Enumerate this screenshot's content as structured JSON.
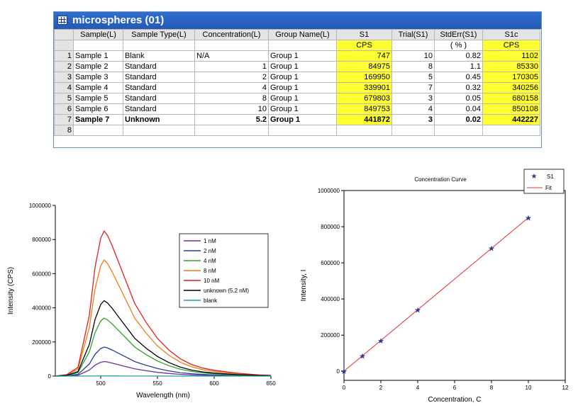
{
  "worksheet": {
    "title": "microspheres (01)",
    "headers": [
      "Sample(L)",
      "Sample Type(L)",
      "Concentration(L)",
      "Group Name(L)",
      "S1",
      "Trial(S1)",
      "StdErr(S1)",
      "S1c"
    ],
    "units": [
      "",
      "",
      "",
      "",
      "CPS",
      "",
      "( % )",
      "CPS"
    ],
    "rows": [
      {
        "n": "1",
        "sample": "Sample 1",
        "type": "Blank",
        "conc": "N/A",
        "group": "Group 1",
        "s1": "747",
        "trial": "10",
        "stderr": "0.82",
        "s1c": "1102"
      },
      {
        "n": "2",
        "sample": "Sample 2",
        "type": "Standard",
        "conc": "1",
        "group": "Group 1",
        "s1": "84975",
        "trial": "8",
        "stderr": "1.1",
        "s1c": "85330"
      },
      {
        "n": "3",
        "sample": "Sample 3",
        "type": "Standard",
        "conc": "2",
        "group": "Group 1",
        "s1": "169950",
        "trial": "5",
        "stderr": "0.45",
        "s1c": "170305"
      },
      {
        "n": "4",
        "sample": "Sample 4",
        "type": "Standard",
        "conc": "4",
        "group": "Group 1",
        "s1": "339901",
        "trial": "7",
        "stderr": "0.32",
        "s1c": "340256"
      },
      {
        "n": "5",
        "sample": "Sample 5",
        "type": "Standard",
        "conc": "8",
        "group": "Group 1",
        "s1": "679803",
        "trial": "3",
        "stderr": "0.05",
        "s1c": "680158"
      },
      {
        "n": "6",
        "sample": "Sample 6",
        "type": "Standard",
        "conc": "10",
        "group": "Group 1",
        "s1": "849753",
        "trial": "4",
        "stderr": "0.04",
        "s1c": "850108"
      },
      {
        "n": "7",
        "sample": "Sample 7",
        "type": "Unknown",
        "conc": "5.2",
        "group": "Group 1",
        "s1": "441872",
        "trial": "3",
        "stderr": "0.02",
        "s1c": "442227"
      },
      {
        "n": "8",
        "sample": "",
        "type": "",
        "conc": "",
        "group": "",
        "s1": "",
        "trial": "",
        "stderr": "",
        "s1c": ""
      }
    ]
  },
  "colors": {
    "title_bar": "#2559b4",
    "highlight": "#ffff33",
    "fit_line": "#e03030",
    "points": "#2a3b9c"
  },
  "chart_data": [
    {
      "type": "line",
      "title": "",
      "xlabel": "Wavelength (nm)",
      "ylabel": "Intensity (CPS)",
      "xlim": [
        460,
        650
      ],
      "ylim": [
        0,
        1000000
      ],
      "xticks": [
        "500",
        "550",
        "600",
        "650"
      ],
      "yticks": [
        "0",
        "200000",
        "400000",
        "600000",
        "800000",
        "1000000"
      ],
      "legend_position": "right",
      "series": [
        {
          "name": "1 nM",
          "color": "#7030a0",
          "peak": 85000
        },
        {
          "name": "2 nM",
          "color": "#2a3b9c",
          "peak": 170000
        },
        {
          "name": "4 nM",
          "color": "#2ca02c",
          "peak": 340000
        },
        {
          "name": "8 nM",
          "color": "#f07f10",
          "peak": 680000
        },
        {
          "name": "10 nM",
          "color": "#e02020",
          "peak": 850000
        },
        {
          "name": "unknown (5.2 nM)",
          "color": "#000000",
          "peak": 442000
        },
        {
          "name": "blank",
          "color": "#20a0a0",
          "peak": 800
        }
      ],
      "shape": {
        "x": [
          460,
          470,
          480,
          490,
          495,
          500,
          503,
          506,
          510,
          520,
          530,
          540,
          550,
          560,
          570,
          580,
          590,
          600,
          620,
          640,
          650
        ],
        "rel": [
          0.0,
          0.01,
          0.06,
          0.42,
          0.75,
          0.95,
          1.0,
          0.97,
          0.9,
          0.7,
          0.5,
          0.37,
          0.26,
          0.18,
          0.12,
          0.08,
          0.055,
          0.04,
          0.02,
          0.008,
          0.005
        ]
      }
    },
    {
      "type": "scatter",
      "title": "Concentration Curve",
      "xlabel": "Concentration, C",
      "ylabel": "Intensity, I",
      "xlim": [
        0,
        12
      ],
      "ylim": [
        -50000,
        1000000
      ],
      "xticks": [
        "0",
        "2",
        "4",
        "6",
        "8",
        "10",
        "12"
      ],
      "yticks": [
        "0",
        "200000",
        "400000",
        "600000",
        "800000",
        "1000000"
      ],
      "legend_position": "top-right",
      "series": [
        {
          "name": "S1",
          "marker": "star",
          "x": [
            0,
            1,
            2,
            4,
            8,
            10
          ],
          "y": [
            747,
            84975,
            169950,
            339901,
            679803,
            849753
          ]
        },
        {
          "name": "Fit",
          "line": true,
          "x": [
            0,
            10
          ],
          "y": [
            747,
            849753
          ]
        }
      ]
    }
  ]
}
